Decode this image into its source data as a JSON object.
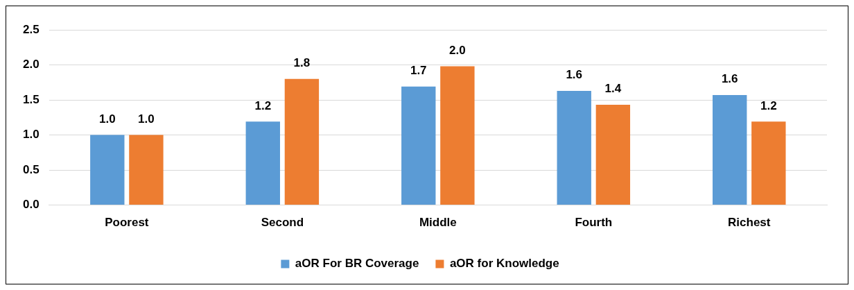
{
  "chart_data": {
    "type": "bar",
    "categories": [
      "Poorest",
      "Second",
      "Middle",
      "Fourth",
      "Richest"
    ],
    "series": [
      {
        "name": "aOR For BR Coverage",
        "color": "#5b9bd5",
        "values": [
          1.0,
          1.19,
          1.69,
          1.63,
          1.57
        ],
        "value_labels": [
          "1.0",
          "1.2",
          "1.7",
          "1.6",
          "1.6"
        ]
      },
      {
        "name": "aOR for Knowledge",
        "color": "#ed7d31",
        "values": [
          1.0,
          1.8,
          1.98,
          1.43,
          1.19
        ],
        "value_labels": [
          "1.0",
          "1.8",
          "2.0",
          "1.4",
          "1.2"
        ]
      }
    ],
    "ylim": [
      0,
      2.5
    ],
    "yticks": [
      {
        "value": 0,
        "label": "0.0"
      },
      {
        "value": 0.5,
        "label": "0.5"
      },
      {
        "value": 1,
        "label": "1.0"
      },
      {
        "value": 1.5,
        "label": "1.5"
      },
      {
        "value": 2,
        "label": "2.0"
      },
      {
        "value": 2.5,
        "label": "2.5"
      }
    ],
    "grid": "y",
    "legend": "bottom"
  }
}
